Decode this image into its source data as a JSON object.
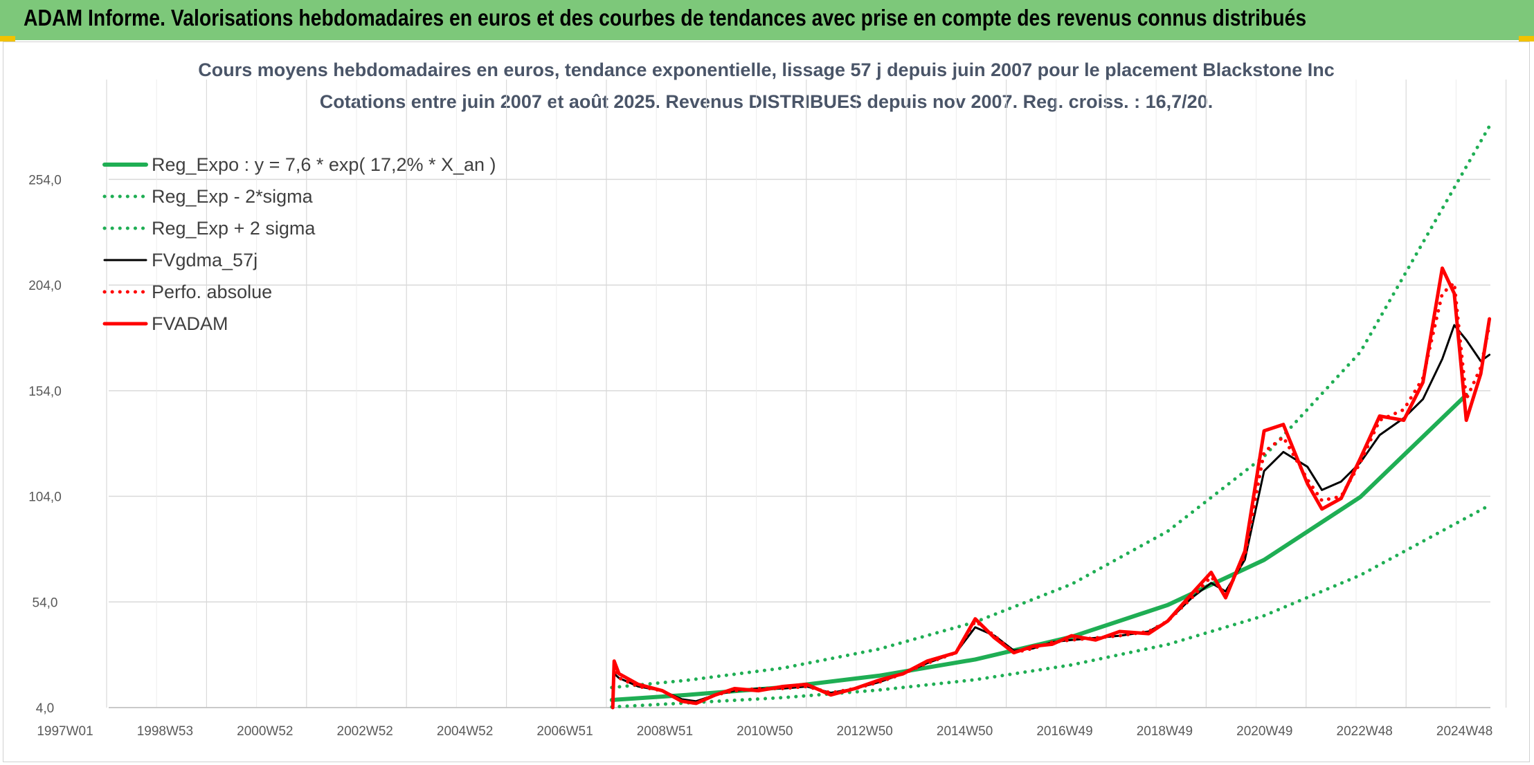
{
  "header": {
    "title": "ADAM Informe. Valorisations hebdomadaires en euros et des courbes de tendances avec prise en compte des revenus connus distribués"
  },
  "colors": {
    "header_bg": "#7dc87a",
    "reg_expo": "#1fae54",
    "fvgdma": "#000000",
    "fvadam": "#ff0000",
    "grid": "#d9d9d9"
  },
  "chart_data": {
    "type": "line",
    "title": "Cours moyens hebdomadaires en euros, tendance exponentielle, lissage 57 j depuis juin 2007 pour le placement Blackstone Inc",
    "subtitle": "Cotations entre juin 2007 et août 2025. Revenus DISTRIBUES depuis nov 2007. Reg. croiss. : 16,7/20.",
    "xlabel": "",
    "ylabel": "",
    "x_ticks": [
      "1997W01",
      "1998W53",
      "2000W52",
      "2002W52",
      "2004W52",
      "2006W51",
      "2008W51",
      "2010W50",
      "2012W50",
      "2014W50",
      "2016W49",
      "2018W49",
      "2020W49",
      "2022W48",
      "2024W48"
    ],
    "y_ticks": [
      "4,0",
      "54,0",
      "104,0",
      "154,0",
      "204,0",
      "254,0"
    ],
    "ylim": [
      4,
      298
    ],
    "xlim": [
      1997.0,
      2025.7
    ],
    "grid": true,
    "legend_position": "top-left",
    "series": [
      {
        "name": "Reg_Expo : y = 7,6 * exp( 17,2% *  X_an )",
        "style": "solid-thick",
        "color": "#1fae54",
        "x": [
          2007.45,
          2009,
          2011,
          2013,
          2015,
          2017,
          2019,
          2021,
          2023,
          2025.2
        ],
        "y": [
          7.6,
          10,
          13.6,
          19.1,
          26.8,
          37.5,
          52.6,
          73.9,
          103.7,
          152
        ]
      },
      {
        "name": "Reg_Exp - 2*sigma",
        "style": "dotted",
        "color": "#1fae54",
        "x": [
          2007.45,
          2009,
          2011,
          2013,
          2015,
          2017,
          2019,
          2021,
          2023,
          2025.7
        ],
        "y": [
          4.3,
          6.2,
          8.7,
          12.3,
          17.2,
          24.2,
          33.9,
          47.5,
          66.7,
          100
        ]
      },
      {
        "name": "Reg_Exp + 2 sigma",
        "style": "dotted",
        "color": "#1fae54",
        "x": [
          2007.45,
          2009,
          2011,
          2013,
          2015,
          2017,
          2019,
          2021,
          2023,
          2025.7
        ],
        "y": [
          13.5,
          16.9,
          22.7,
          31.7,
          44.5,
          62.4,
          87.5,
          122.9,
          172.3,
          280
        ]
      },
      {
        "name": "FVgdma_57j",
        "style": "solid",
        "color": "#000000",
        "x": [
          2007.5,
          2007.6,
          2008.0,
          2008.5,
          2008.9,
          2009.2,
          2009.6,
          2010.0,
          2010.5,
          2011.0,
          2011.5,
          2012.0,
          2012.5,
          2013.0,
          2013.5,
          2014.0,
          2014.6,
          2015.0,
          2015.4,
          2015.8,
          2016.2,
          2016.6,
          2017.0,
          2017.5,
          2018.0,
          2018.6,
          2019.0,
          2019.5,
          2019.9,
          2020.2,
          2020.6,
          2021.0,
          2021.4,
          2021.9,
          2022.2,
          2022.6,
          2023.0,
          2023.4,
          2023.9,
          2024.3,
          2024.7,
          2024.95,
          2025.2,
          2025.5,
          2025.68
        ],
        "y": [
          20,
          18,
          14,
          12,
          8,
          7,
          10,
          12,
          13,
          13,
          14,
          11,
          13,
          16,
          20,
          25,
          30,
          42,
          38,
          31,
          32,
          35,
          36,
          37,
          38,
          40,
          45,
          56,
          63,
          59,
          74,
          116,
          125,
          118,
          107,
          111,
          120,
          133,
          141,
          150,
          169,
          185,
          178,
          168,
          171
        ]
      },
      {
        "name": "Perfo. absolue",
        "style": "dotted",
        "color": "#ff0000",
        "x": [
          2007.5,
          2007.6,
          2008.0,
          2008.5,
          2008.9,
          2009.2,
          2009.6,
          2010.0,
          2010.5,
          2011.0,
          2011.5,
          2012.0,
          2012.5,
          2013.0,
          2013.5,
          2014.0,
          2014.6,
          2015.0,
          2015.4,
          2015.8,
          2016.2,
          2016.6,
          2017.0,
          2017.5,
          2018.0,
          2018.6,
          2019.0,
          2019.5,
          2019.9,
          2020.2,
          2020.6,
          2021.0,
          2021.4,
          2021.9,
          2022.2,
          2022.6,
          2023.0,
          2023.4,
          2023.9,
          2024.3,
          2024.7,
          2024.95,
          2025.2,
          2025.5,
          2025.68
        ],
        "y": [
          24,
          18,
          14,
          12,
          7,
          6,
          10,
          12,
          13,
          13,
          14,
          11,
          13,
          16,
          20,
          25,
          30,
          45,
          38,
          30,
          32,
          35,
          36,
          37,
          38,
          40,
          45,
          56,
          66,
          57,
          76,
          125,
          132,
          112,
          102,
          104,
          120,
          140,
          145,
          160,
          200,
          205,
          150,
          165,
          185
        ]
      },
      {
        "name": "FVADAM",
        "style": "solid-thick",
        "color": "#ff0000",
        "x": [
          2007.47,
          2007.5,
          2007.6,
          2008.0,
          2008.5,
          2008.9,
          2009.2,
          2009.6,
          2010.0,
          2010.5,
          2011.0,
          2011.5,
          2012.0,
          2012.5,
          2013.0,
          2013.5,
          2014.0,
          2014.6,
          2015.0,
          2015.4,
          2015.8,
          2016.2,
          2016.6,
          2017.0,
          2017.5,
          2018.0,
          2018.6,
          2019.0,
          2019.5,
          2019.9,
          2020.2,
          2020.6,
          2021.0,
          2021.4,
          2021.9,
          2022.2,
          2022.6,
          2023.0,
          2023.4,
          2023.9,
          2024.3,
          2024.7,
          2024.95,
          2025.2,
          2025.5,
          2025.68
        ],
        "y": [
          4,
          26,
          20,
          15,
          12,
          7,
          6,
          10,
          13,
          12,
          14,
          15,
          10,
          13,
          17,
          20,
          26,
          30,
          46,
          37,
          30,
          33,
          34,
          38,
          36,
          40,
          39,
          45,
          58,
          68,
          56,
          78,
          135,
          138,
          110,
          98,
          103,
          122,
          142,
          140,
          158,
          212,
          200,
          140,
          162,
          188
        ]
      }
    ]
  }
}
